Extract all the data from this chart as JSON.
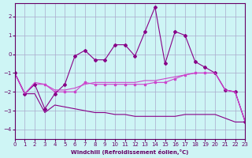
{
  "xlabel": "Windchill (Refroidissement éolien,°C)",
  "xlim": [
    0,
    23
  ],
  "ylim": [
    -4.5,
    2.7
  ],
  "yticks": [
    -4,
    -3,
    -2,
    -1,
    0,
    1,
    2
  ],
  "xticks": [
    0,
    1,
    2,
    3,
    4,
    5,
    6,
    7,
    8,
    9,
    10,
    11,
    12,
    13,
    14,
    15,
    16,
    17,
    18,
    19,
    20,
    21,
    22,
    23
  ],
  "bg_color": "#cef5f5",
  "grid_color": "#aaaacc",
  "purple_dark": "#880088",
  "purple_light": "#cc44cc",
  "y_bottom": [
    -1.0,
    -2.1,
    -2.1,
    -3.1,
    -2.7,
    -2.8,
    -2.9,
    -3.0,
    -3.1,
    -3.1,
    -3.2,
    -3.2,
    -3.3,
    -3.3,
    -3.3,
    -3.3,
    -3.3,
    -3.2,
    -3.2,
    -3.2,
    -3.2,
    -3.4,
    -3.6,
    -3.6
  ],
  "y_mid_low": [
    -1.0,
    -2.1,
    -1.6,
    -1.6,
    -2.0,
    -2.0,
    -2.0,
    -1.5,
    -1.6,
    -1.6,
    -1.6,
    -1.6,
    -1.6,
    -1.6,
    -1.5,
    -1.5,
    -1.3,
    -1.1,
    -1.0,
    -1.0,
    -1.0,
    -1.9,
    -2.0,
    -3.6
  ],
  "y_upper": [
    -1.0,
    -2.1,
    -1.6,
    -2.9,
    -2.1,
    -1.6,
    -0.1,
    0.2,
    -0.3,
    -0.3,
    0.5,
    0.5,
    -0.1,
    1.2,
    2.5,
    -0.5,
    1.2,
    1.0,
    -0.4,
    -0.7,
    -1.0,
    -1.9,
    -2.0,
    -3.6
  ],
  "y_mid": [
    -1.0,
    -2.1,
    -1.5,
    -1.6,
    -1.9,
    -1.9,
    -1.8,
    -1.6,
    -1.5,
    -1.5,
    -1.5,
    -1.5,
    -1.5,
    -1.4,
    -1.4,
    -1.3,
    -1.2,
    -1.1,
    -1.0,
    -1.0,
    -1.0,
    -1.9,
    -2.0,
    -3.6
  ]
}
